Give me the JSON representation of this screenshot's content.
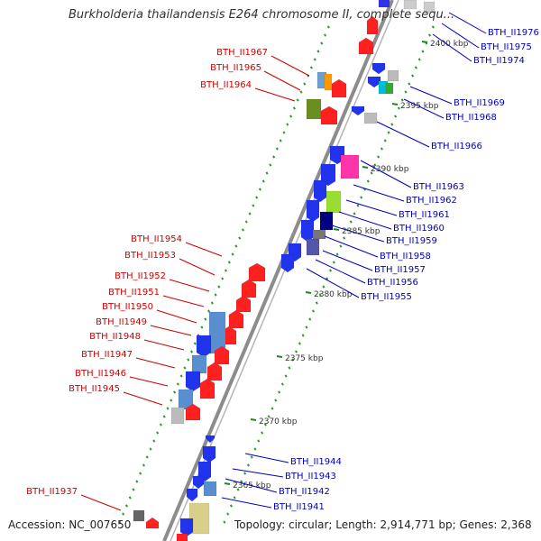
{
  "title": "Burkholderia thailandensis E264 chromosome II, complete sequ...",
  "footer": {
    "accession": "Accession: NC_007650",
    "topology": "Topology: circular; Length: 2,914,771 bp; Genes: 2,368"
  },
  "colors": {
    "left_label": "#cc0000",
    "right_label": "#0000bb",
    "backbone": "#8c8c8c",
    "tick": "#1a8a1a"
  },
  "kbp_marks": [
    "2400 kbp",
    "2395 kbp",
    "2390 kbp",
    "2385 kbp",
    "2380 kbp",
    "2375 kbp",
    "2370 kbp",
    "2365 kbp"
  ],
  "left_genes": [
    "BTH_II1967",
    "BTH_II1965",
    "BTH_II1964",
    "BTH_II1954",
    "BTH_II1953",
    "BTH_II1952",
    "BTH_II1951",
    "BTH_II1950",
    "BTH_II1949",
    "BTH_II1948",
    "BTH_II1947",
    "BTH_II1946",
    "BTH_II1945",
    "BTH_II1937"
  ],
  "right_genes": [
    "BTH_II1976",
    "BTH_II1975",
    "BTH_II1974",
    "BTH_II1969",
    "BTH_II1968",
    "BTH_II1966",
    "BTH_II1963",
    "BTH_II1962",
    "BTH_II1961",
    "BTH_II1960",
    "BTH_II1959",
    "BTH_II1958",
    "BTH_II1957",
    "BTH_II1956",
    "BTH_II1955",
    "BTH_II1944",
    "BTH_II1943",
    "BTH_II1942",
    "BTH_II1941"
  ]
}
